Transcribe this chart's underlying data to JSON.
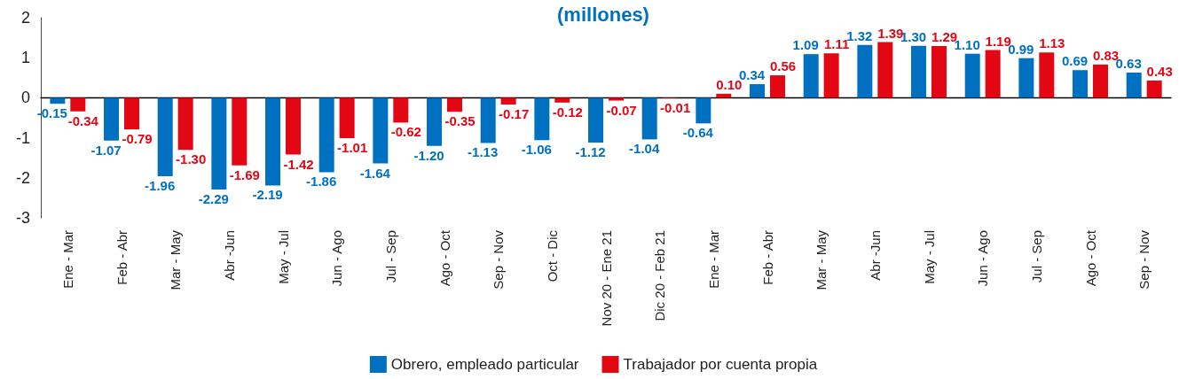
{
  "chart_data": {
    "type": "bar",
    "title": "(millones)",
    "categories": [
      "Ene - Mar",
      "Feb - Abr",
      "Mar - May",
      "Abr -Jun",
      "May - Jul",
      "Jun - Ago",
      "Jul - Sep",
      "Ago - Oct",
      "Sep - Nov",
      "Oct - Dic",
      "Nov 20 - Ene 21",
      "Dic 20 - Feb 21",
      "Ene - Mar",
      "Feb - Abr",
      "Mar - May",
      "Abr -Jun",
      "May - Jul",
      "Jun - Ago",
      "Jul - Sep",
      "Ago - Oct",
      "Sep - Nov"
    ],
    "series": [
      {
        "name": "Obrero, empleado particular",
        "color": "#0070c0",
        "values": [
          -0.15,
          -1.07,
          -1.96,
          -2.29,
          -2.19,
          -1.86,
          -1.64,
          -1.2,
          -1.13,
          -1.06,
          -1.12,
          -1.04,
          -0.64,
          0.34,
          1.09,
          1.32,
          1.3,
          1.1,
          0.99,
          0.69,
          0.63
        ],
        "value_labels": [
          "-0.15",
          "-1.07",
          "-1.96",
          "-2.29",
          "-2.19",
          "-1.86",
          "-1.64",
          "-1.20",
          "-1.13",
          "-1.06",
          "-1.12",
          "-1.04",
          "-0.64",
          "0.34",
          "1.09",
          "1.32",
          "1.30",
          "1.10",
          "0.99",
          "0.69",
          "0.63"
        ]
      },
      {
        "name": "Trabajador por cuenta propia",
        "color": "#e30613",
        "values": [
          -0.34,
          -0.79,
          -1.3,
          -1.69,
          -1.42,
          -1.01,
          -0.62,
          -0.35,
          -0.17,
          -0.12,
          -0.07,
          -0.01,
          0.1,
          0.56,
          1.11,
          1.39,
          1.29,
          1.19,
          1.13,
          0.83,
          0.43
        ],
        "value_labels": [
          "-0.34",
          "-0.79",
          "-1.30",
          "-1.69",
          "-1.42",
          "-1.01",
          "-0.62",
          "-0.35",
          "-0.17",
          "-0.12",
          "-0.07",
          "-0.01",
          "0.10",
          "0.56",
          "1.11",
          "1.39",
          "1.29",
          "1.19",
          "1.13",
          "0.83",
          "0.43"
        ]
      }
    ],
    "ylim": [
      -3,
      2
    ],
    "yticks": [
      -3,
      -2,
      -1,
      0,
      1,
      2
    ],
    "legend": "bottom"
  }
}
